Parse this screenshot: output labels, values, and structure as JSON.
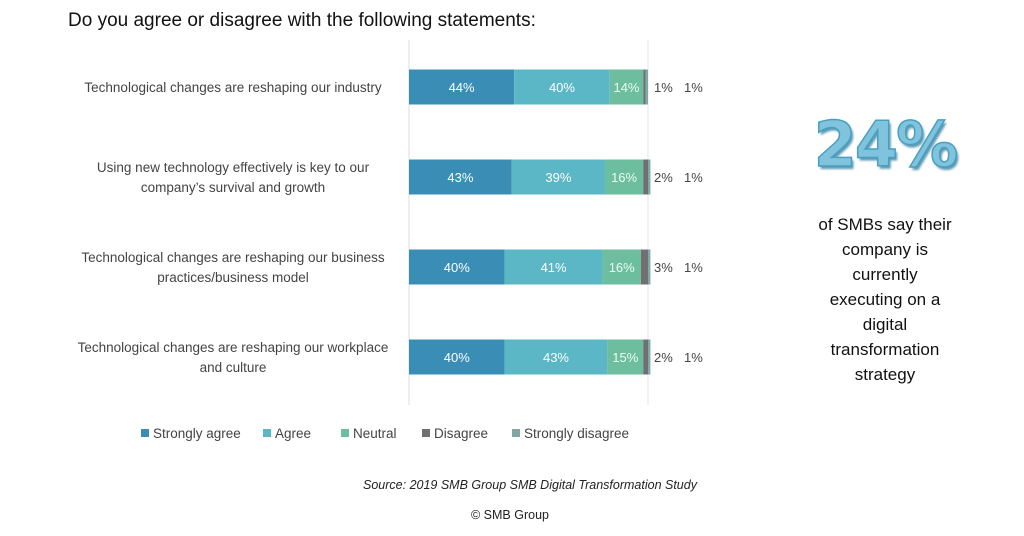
{
  "chart_data": {
    "type": "bar",
    "orientation": "horizontal",
    "stacked": true,
    "title": "Do you agree or disagree with the following statements:",
    "categories": [
      "Technological changes are reshaping our industry",
      "Using new technology effectively is key to our company’s survival and growth",
      "Technological changes are reshaping our business practices/business model",
      "Technological changes are reshaping our workplace and culture"
    ],
    "category_lines": [
      [
        "Technological changes are reshaping our industry"
      ],
      [
        "Using new technology effectively is key to our",
        "company’s survival and growth"
      ],
      [
        "Technological changes are reshaping our business",
        "practices/business model"
      ],
      [
        "Technological changes are reshaping our workplace",
        "and culture"
      ]
    ],
    "series": [
      {
        "name": "Strongly agree",
        "color": "#3a8db4",
        "label_color": "#ffffff",
        "values": [
          44,
          43,
          40,
          40
        ]
      },
      {
        "name": "Agree",
        "color": "#5bb7c6",
        "label_color": "#ffffff",
        "values": [
          40,
          39,
          41,
          43
        ]
      },
      {
        "name": "Neutral",
        "color": "#6dbd9f",
        "label_color": "#e8fff6",
        "values": [
          14,
          16,
          16,
          15
        ]
      },
      {
        "name": "Disagree",
        "color": "#707070",
        "label_color": "#444444",
        "values": [
          1,
          2,
          3,
          2
        ]
      },
      {
        "name": "Strongly disagree",
        "color": "#7fa7a6",
        "label_color": "#444444",
        "values": [
          1,
          1,
          1,
          1
        ]
      }
    ],
    "xlim": [
      0,
      100
    ],
    "legend": "bottom",
    "unit": "%"
  },
  "callout": {
    "value": "24%",
    "text": [
      "of SMBs say their",
      "company is",
      "currently",
      "executing on a",
      "digital",
      "transformation",
      "strategy"
    ]
  },
  "source": "Source: 2019 SMB Group SMB Digital Transformation Study",
  "copyright": "© SMB Group"
}
